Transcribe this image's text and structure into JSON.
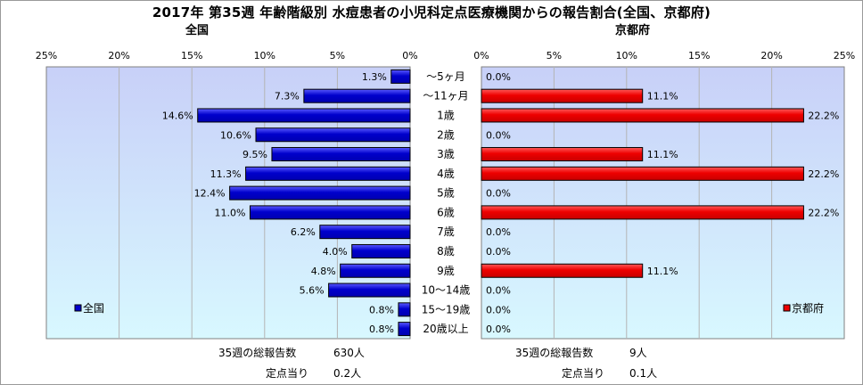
{
  "title": "2017年 第35週 年齢階級別 水痘患者の小児科定点医療機関からの報告割合(全国、京都府)",
  "colors": {
    "national_bar": "#0000cc",
    "kyoto_bar": "#ee0000",
    "plot_top": "#c8d0f8",
    "plot_bottom": "#d8f8ff",
    "grid": "#b4b4b4"
  },
  "chart_data": [
    {
      "type": "bar",
      "orientation": "horizontal",
      "direction": "right-to-left",
      "title": "全国",
      "categories": [
        "～5ヶ月",
        "～11ヶ月",
        "1歳",
        "2歳",
        "3歳",
        "4歳",
        "5歳",
        "6歳",
        "7歳",
        "8歳",
        "9歳",
        "10～14歳",
        "15～19歳",
        "20歳以上"
      ],
      "series": [
        {
          "name": "全国",
          "values": [
            1.3,
            7.3,
            14.6,
            10.6,
            9.5,
            11.3,
            12.4,
            11.0,
            6.2,
            4.0,
            4.8,
            5.6,
            0.8,
            0.8
          ]
        }
      ],
      "value_labels": [
        "1.3%",
        "7.3%",
        "14.6%",
        "10.6%",
        "9.5%",
        "11.3%",
        "12.4%",
        "11.0%",
        "6.2%",
        "4.0%",
        "4.8%",
        "5.6%",
        "0.8%",
        "0.8%"
      ],
      "xlim": [
        0,
        25
      ],
      "ticks": [
        "25%",
        "20%",
        "15%",
        "10%",
        "5%",
        "0%"
      ],
      "grid": true,
      "legend_position": "bottom-left"
    },
    {
      "type": "bar",
      "orientation": "horizontal",
      "direction": "left-to-right",
      "title": "京都府",
      "categories": [
        "～5ヶ月",
        "～11ヶ月",
        "1歳",
        "2歳",
        "3歳",
        "4歳",
        "5歳",
        "6歳",
        "7歳",
        "8歳",
        "9歳",
        "10～14歳",
        "15～19歳",
        "20歳以上"
      ],
      "series": [
        {
          "name": "京都府",
          "values": [
            0.0,
            11.1,
            22.2,
            0.0,
            11.1,
            22.2,
            0.0,
            22.2,
            0.0,
            0.0,
            11.1,
            0.0,
            0.0,
            0.0
          ]
        }
      ],
      "value_labels": [
        "0.0%",
        "11.1%",
        "22.2%",
        "0.0%",
        "11.1%",
        "22.2%",
        "0.0%",
        "22.2%",
        "0.0%",
        "0.0%",
        "11.1%",
        "0.0%",
        "0.0%",
        "0.0%"
      ],
      "xlim": [
        0,
        25
      ],
      "ticks": [
        "0%",
        "5%",
        "10%",
        "15%",
        "20%",
        "25%"
      ],
      "grid": true,
      "legend_position": "bottom-right"
    }
  ],
  "footer": {
    "national": {
      "total_label": "35週の総報告数",
      "total_value": "630人",
      "per_label": "定点当り",
      "per_value": "0.2人"
    },
    "kyoto": {
      "total_label": "35週の総報告数",
      "total_value": "9人",
      "per_label": "定点当り",
      "per_value": "0.1人"
    }
  }
}
